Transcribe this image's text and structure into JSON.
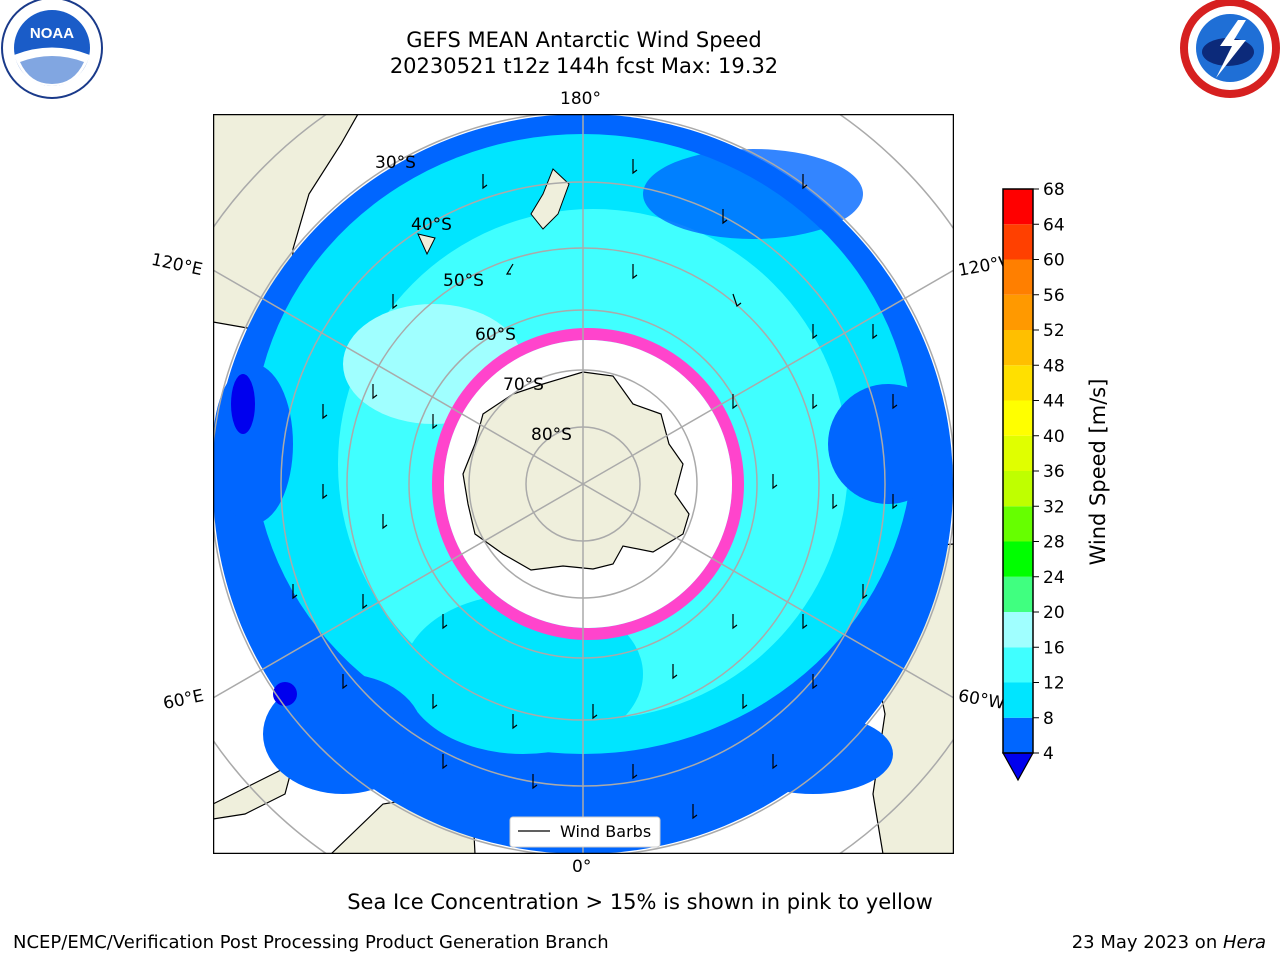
{
  "title": "GEFS MEAN Antarctic Wind Speed",
  "subtitle": "20230521 t12z 144h fcst   Max: 19.32",
  "logos": {
    "left": "NOAA",
    "right": "NATIONAL WEATHER SERVICE"
  },
  "map": {
    "projection": "south-polar-stereographic",
    "lon_labels": {
      "top": "180°",
      "bottom": "0°",
      "left_upper": "120°E",
      "left_lower": "60°E",
      "right_upper": "120°W",
      "right_lower": "60°W"
    },
    "lat_labels": [
      "30°S",
      "40°S",
      "50°S",
      "60°S",
      "70°S",
      "80°S"
    ],
    "legend": "Wind Barbs"
  },
  "colorbar": {
    "label": "Wind Speed [m/s]",
    "ticks": [
      "4",
      "8",
      "12",
      "16",
      "20",
      "24",
      "28",
      "32",
      "36",
      "40",
      "44",
      "48",
      "52",
      "56",
      "60",
      "64",
      "68"
    ],
    "colors": [
      "#0066ff",
      "#00e5ff",
      "#40ffff",
      "#a0ffff",
      "#40ff80",
      "#00ff00",
      "#66ff00",
      "#bfff00",
      "#e0ff00",
      "#ffff00",
      "#ffe000",
      "#ffbf00",
      "#ff9900",
      "#ff7f00",
      "#ff4000",
      "#ff0000"
    ],
    "under_color": "#0000ee"
  },
  "note": "Sea Ice Concentration > 15% is shown in pink to yellow",
  "footer": {
    "left": "NCEP/EMC/Verification Post Processing Product Generation Branch",
    "right_prefix": "23 May 2023 on ",
    "right_host": "Hera"
  }
}
